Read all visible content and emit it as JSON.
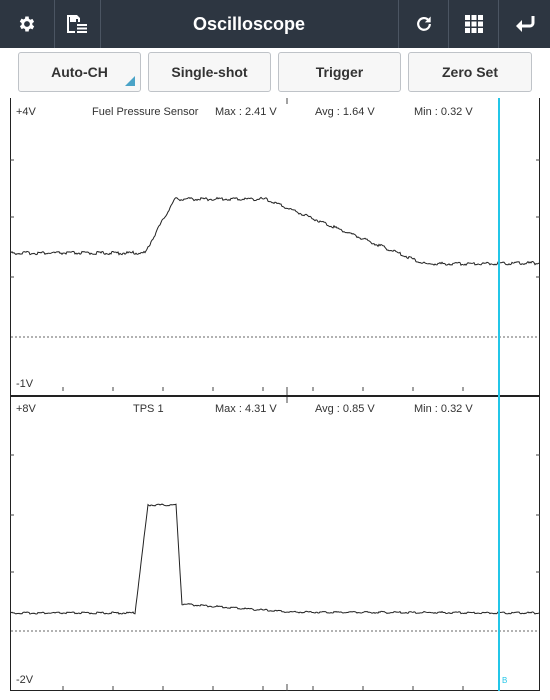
{
  "toolbar": {
    "title": "Oscilloscope",
    "icons": [
      "gear-icon",
      "save-list-icon",
      "refresh-icon",
      "grid-icon",
      "back-arrow-icon"
    ]
  },
  "controls": [
    "Auto-CH",
    "Single-shot",
    "Trigger",
    "Zero Set"
  ],
  "channels": [
    {
      "scale_top": "+4V",
      "scale_bottom": "-1V",
      "name": "Fuel Pressure Sensor",
      "max": "Max : 2.41 V",
      "avg": "Avg : 1.64 V",
      "min": "Min : 0.32 V"
    },
    {
      "scale_top": "+8V",
      "scale_bottom": "-2V",
      "name": "TPS 1",
      "max": "Max : 4.31 V",
      "avg": "Avg : 0.85 V",
      "min": "Min : 0.32 V"
    }
  ],
  "cursor": {
    "label": "B",
    "color": "#23c6e8"
  },
  "colors": {
    "toolbar_bg": "#2d3641",
    "trace": "#222222",
    "accent": "#4aa3c7"
  }
}
